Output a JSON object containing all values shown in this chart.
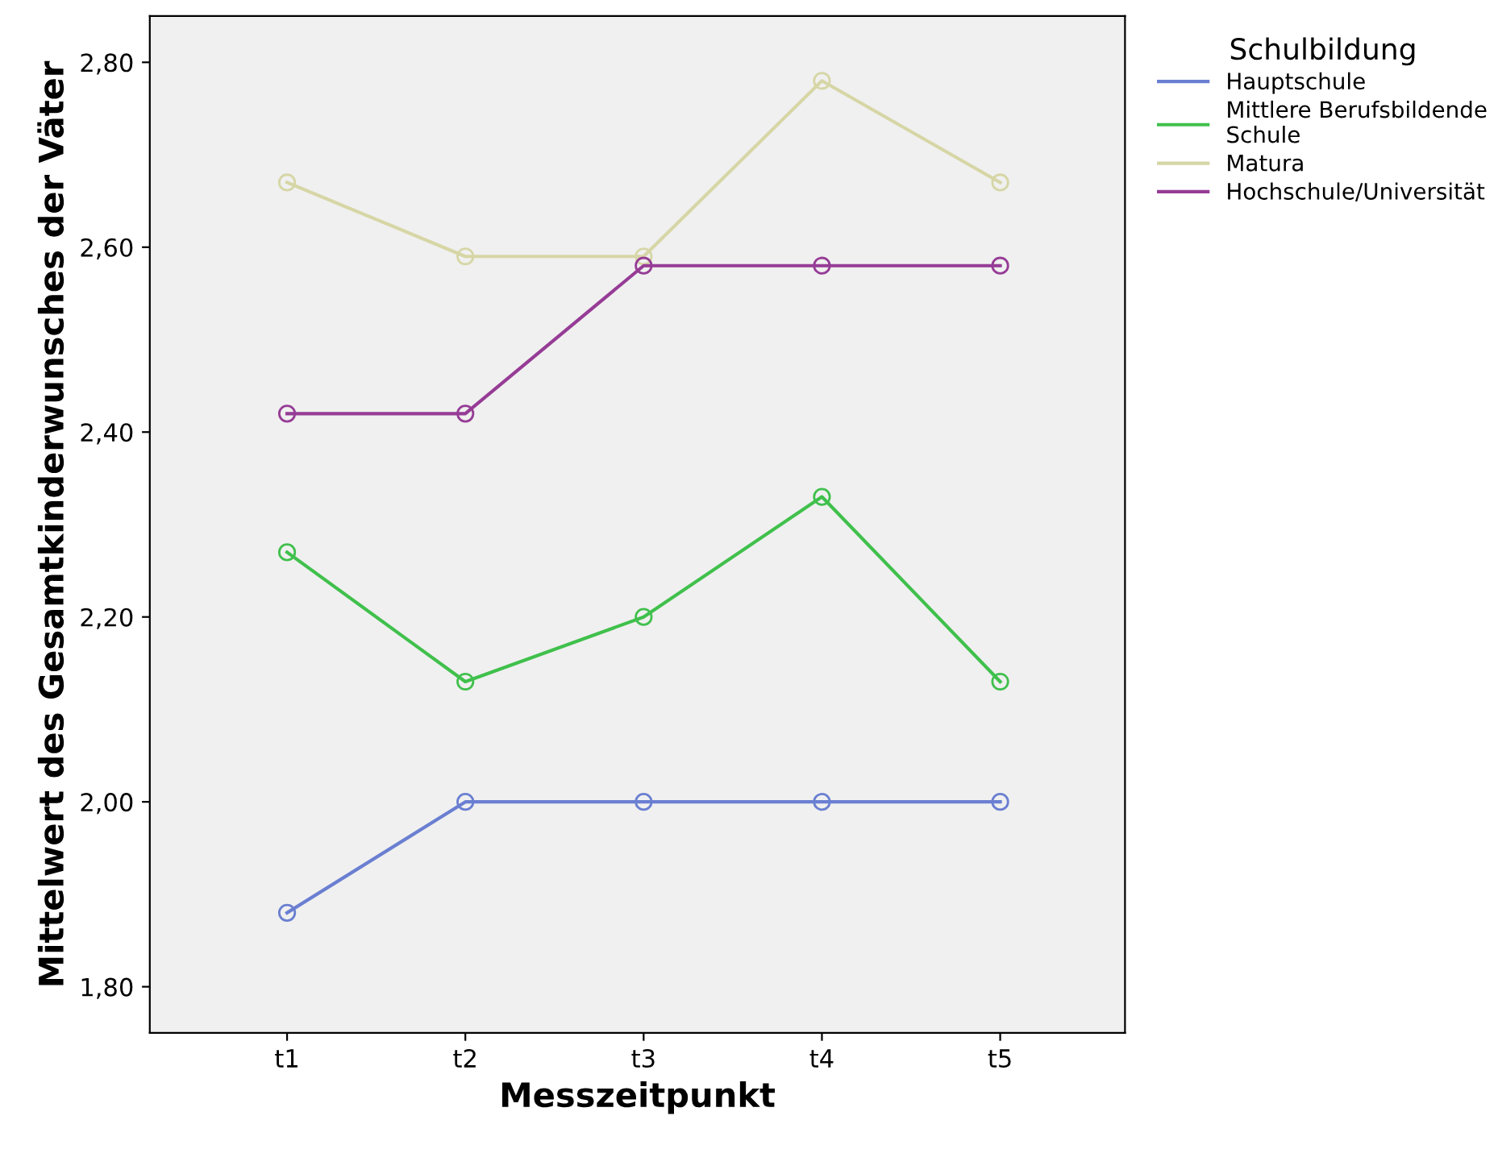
{
  "chart_data": {
    "type": "line",
    "xlabel": "Messzeitpunkt",
    "ylabel": "Mittelwert des Gesamtkinderwunsches der Väter",
    "legend_title": "Schulbildung",
    "categories": [
      "t1",
      "t2",
      "t3",
      "t4",
      "t5"
    ],
    "series": [
      {
        "name": "Hauptschule",
        "color": "#6a7fd1",
        "values": [
          1.88,
          2.0,
          2.0,
          2.0,
          2.0
        ]
      },
      {
        "name": "Mittlere Berufsbildende\nSchule",
        "color": "#40c04c",
        "values": [
          2.27,
          2.13,
          2.2,
          2.33,
          2.13
        ]
      },
      {
        "name": "Matura",
        "color": "#d6d6a6",
        "values": [
          2.67,
          2.59,
          2.59,
          2.78,
          2.67
        ]
      },
      {
        "name": "Hochschule/Universität",
        "color": "#963c96",
        "values": [
          2.42,
          2.42,
          2.58,
          2.58,
          2.58
        ]
      }
    ],
    "ylim": [
      1.75,
      2.85
    ],
    "yticks": [
      {
        "value": 1.8,
        "label": "1,80"
      },
      {
        "value": 2.0,
        "label": "2,00"
      },
      {
        "value": 2.2,
        "label": "2,20"
      },
      {
        "value": 2.4,
        "label": "2,40"
      },
      {
        "value": 2.6,
        "label": "2,60"
      },
      {
        "value": 2.8,
        "label": "2,80"
      }
    ],
    "grid": false,
    "legend": "top right",
    "marker": "circle",
    "line_style": "solid"
  }
}
